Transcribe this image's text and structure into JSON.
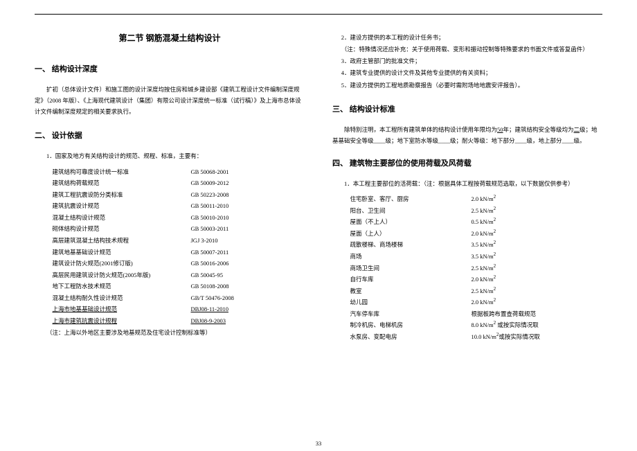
{
  "page_number": "33",
  "section_title": "第二节  钢筋混凝土结构设计",
  "left": {
    "h1": "一、  结构设计深度",
    "p1": "扩初（总体设计文件）和施工图的设计深度均按住房和城乡建设部《建筑工程设计文件编制深度规定》（2008 年版）、《上海现代建筑设计（集团）有限公司设计深度统一标准（试行稿）》及上海市总体设计文件编制深度规定的相关要求执行。",
    "h2": "二、  设计依据",
    "list_intro": "1．国家及地方有关结构设计的规范、规程、标准，主要有：",
    "standards": [
      {
        "name": "建筑结构可靠度设计统一标准",
        "code": "GB 50068-2001",
        "u": false
      },
      {
        "name": "建筑结构荷载规范",
        "code": "GB 50009-2012",
        "u": false
      },
      {
        "name": "建筑工程抗震设防分类标准",
        "code": "GB 50223-2008",
        "u": false
      },
      {
        "name": "建筑抗震设计规范",
        "code": "GB 50011-2010",
        "u": false
      },
      {
        "name": "混凝土结构设计规范",
        "code": "GB 50010-2010",
        "u": false
      },
      {
        "name": "砌体结构设计规范",
        "code": "GB 50003-2011",
        "u": false
      },
      {
        "name": "高层建筑混凝土结构技术规程",
        "code": "JGJ 3-2010",
        "u": false
      },
      {
        "name": "建筑地基基础设计规范",
        "code": "GB 50007-2011",
        "u": false
      },
      {
        "name": "建筑设计防火规范(2001修订版)",
        "code": "GB 50016-2006",
        "u": false
      },
      {
        "name": "高层民用建筑设计防火规范(2005年版)",
        "code": "GB 50045-95",
        "u": false
      },
      {
        "name": "地下工程防水技术规范",
        "code": "GB 50108-2008",
        "u": false
      },
      {
        "name": "混凝土结构耐久性设计规范",
        "code": "GB/T 50476-2008",
        "u": false
      },
      {
        "name": "上海市地基基础设计规范",
        "code": "DBJ08-11-2010",
        "u": true
      },
      {
        "name": "上海市建筑抗震设计规程",
        "code": "DBJ08-9-2003",
        "u": true
      }
    ],
    "note": "（注：上海以外地区主要涉及地基规范及住宅设计控制标准等）"
  },
  "right": {
    "top_items": [
      "2．建设方提供的本工程的设计任务书；",
      "（注：特殊情况还应补充：关于使用荷载、变形和振动控制等特殊要求的书面文件或答复函件）",
      "3．政府主管部门的批准文件；",
      "4．建筑专业提供的设计文件及其他专业提供的有关资料；",
      "5．建设方提供的工程地质勘察报告（必要时需附场地地震安评报告）。"
    ],
    "h3": "三、  结构设计标准",
    "p3": "除特别注明，本工程所有建筑单体的结构设计使用年限均为<span class='underline'>50</span>年；建筑结构安全等级均为<span class='underline'>二</span>级；地基基础安全等级____级；地下室防水等级____级；耐火等级：地下部分____级，地上部分____级。",
    "h4": "四、  建筑物主要部位的使用荷载及风荷载",
    "load_intro": "1．本工程主要部位的活荷载：（注：根据具体工程按荷载规范选取，以下数据仅供参考）",
    "loads": [
      {
        "name": "住宅卧室、客厅、厨房",
        "val": "2.0 kN/m²"
      },
      {
        "name": "阳台、卫生间",
        "val": "2.5 kN/m²"
      },
      {
        "name": "屋面（不上人）",
        "val": "0.5 kN/m²"
      },
      {
        "name": "屋面（上人）",
        "val": "2.0 kN/m²"
      },
      {
        "name": "疏散楼梯、商场楼梯",
        "val": "3.5 kN/m²"
      },
      {
        "name": "商场",
        "val": "3.5 kN/m²"
      },
      {
        "name": "商场卫生间",
        "val": "2.5 kN/m²"
      },
      {
        "name": "自行车库",
        "val": "2.0 kN/m²"
      },
      {
        "name": "教室",
        "val": "2.5 kN/m²"
      },
      {
        "name": "幼儿园",
        "val": "2.0 kN/m²"
      },
      {
        "name": "汽车停车库",
        "val": "根据板跨布置查荷载规范"
      },
      {
        "name": "制冷机房、电梯机房",
        "val": "8.0 kN/m² 或按实际情况取"
      },
      {
        "name": "水泵房、变配电房",
        "val": "10.0 kN/m²或按实际情况取"
      }
    ]
  }
}
